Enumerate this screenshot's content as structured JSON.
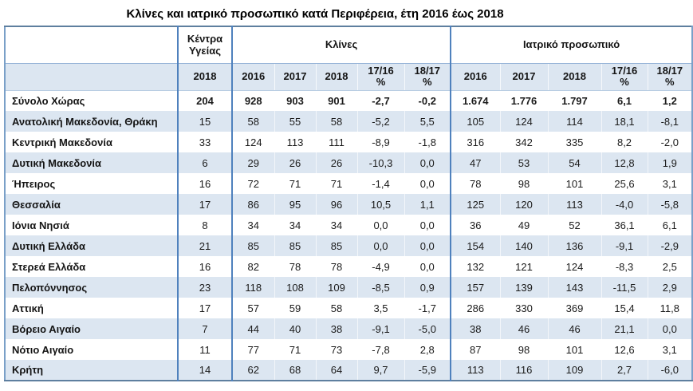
{
  "colors": {
    "row_alt_bg": "#dce6f1",
    "group_separator": "#4f81bd",
    "outer_border": "#5e7f9f",
    "text": "#1b1b1b"
  },
  "chart_data": {
    "type": "table",
    "title": "Κλίνες και ιατρικό προσωπικό κατά Περιφέρεια, έτη 2016 έως 2018",
    "corner_header": "",
    "groups": [
      {
        "label": "Κέντρα\nΥγείας",
        "colspan": 1
      },
      {
        "label": "Κλίνες",
        "colspan": 5
      },
      {
        "label": "Ιατρικό προσωπικό",
        "colspan": 5
      }
    ],
    "subheaders": [
      "2018",
      "2016",
      "2017",
      "2018",
      "17/16\n%",
      "18/17\n%",
      "2016",
      "2017",
      "2018",
      "17/16\n%",
      "18/17\n%"
    ],
    "rows": [
      {
        "label": "Σύνολο Χώρας",
        "emphasis": true,
        "values": [
          "204",
          "928",
          "903",
          "901",
          "-2,7",
          "-0,2",
          "1.674",
          "1.776",
          "1.797",
          "6,1",
          "1,2"
        ]
      },
      {
        "label": "Ανατολική Μακεδονία, Θράκη",
        "emphasis": false,
        "values": [
          "15",
          "58",
          "55",
          "58",
          "-5,2",
          "5,5",
          "105",
          "124",
          "114",
          "18,1",
          "-8,1"
        ]
      },
      {
        "label": "Κεντρική Μακεδονία",
        "emphasis": false,
        "values": [
          "33",
          "124",
          "113",
          "111",
          "-8,9",
          "-1,8",
          "316",
          "342",
          "335",
          "8,2",
          "-2,0"
        ]
      },
      {
        "label": "Δυτική Μακεδονία",
        "emphasis": false,
        "values": [
          "6",
          "29",
          "26",
          "26",
          "-10,3",
          "0,0",
          "47",
          "53",
          "54",
          "12,8",
          "1,9"
        ]
      },
      {
        "label": "Ήπειρος",
        "emphasis": false,
        "values": [
          "16",
          "72",
          "71",
          "71",
          "-1,4",
          "0,0",
          "78",
          "98",
          "101",
          "25,6",
          "3,1"
        ]
      },
      {
        "label": "Θεσσαλία",
        "emphasis": false,
        "values": [
          "17",
          "86",
          "95",
          "96",
          "10,5",
          "1,1",
          "125",
          "120",
          "113",
          "-4,0",
          "-5,8"
        ]
      },
      {
        "label": "Ιόνια Νησιά",
        "emphasis": false,
        "values": [
          "8",
          "34",
          "34",
          "34",
          "0,0",
          "0,0",
          "36",
          "49",
          "52",
          "36,1",
          "6,1"
        ]
      },
      {
        "label": "Δυτική Ελλάδα",
        "emphasis": false,
        "values": [
          "21",
          "85",
          "85",
          "85",
          "0,0",
          "0,0",
          "154",
          "140",
          "136",
          "-9,1",
          "-2,9"
        ]
      },
      {
        "label": "Στερεά Ελλάδα",
        "emphasis": false,
        "values": [
          "16",
          "82",
          "78",
          "78",
          "-4,9",
          "0,0",
          "132",
          "121",
          "124",
          "-8,3",
          "2,5"
        ]
      },
      {
        "label": "Πελοπόννησος",
        "emphasis": false,
        "values": [
          "23",
          "118",
          "108",
          "109",
          "-8,5",
          "0,9",
          "157",
          "139",
          "143",
          "-11,5",
          "2,9"
        ]
      },
      {
        "label": "Αττική",
        "emphasis": false,
        "values": [
          "17",
          "57",
          "59",
          "58",
          "3,5",
          "-1,7",
          "286",
          "330",
          "369",
          "15,4",
          "11,8"
        ]
      },
      {
        "label": "Βόρειο Αιγαίο",
        "emphasis": false,
        "values": [
          "7",
          "44",
          "40",
          "38",
          "-9,1",
          "-5,0",
          "38",
          "46",
          "46",
          "21,1",
          "0,0"
        ]
      },
      {
        "label": "Νότιο Αιγαίο",
        "emphasis": false,
        "values": [
          "11",
          "77",
          "71",
          "73",
          "-7,8",
          "2,8",
          "87",
          "98",
          "101",
          "12,6",
          "3,1"
        ]
      },
      {
        "label": "Κρήτη",
        "emphasis": false,
        "values": [
          "14",
          "62",
          "68",
          "64",
          "9,7",
          "-5,9",
          "113",
          "116",
          "109",
          "2,7",
          "-6,0"
        ]
      }
    ]
  }
}
